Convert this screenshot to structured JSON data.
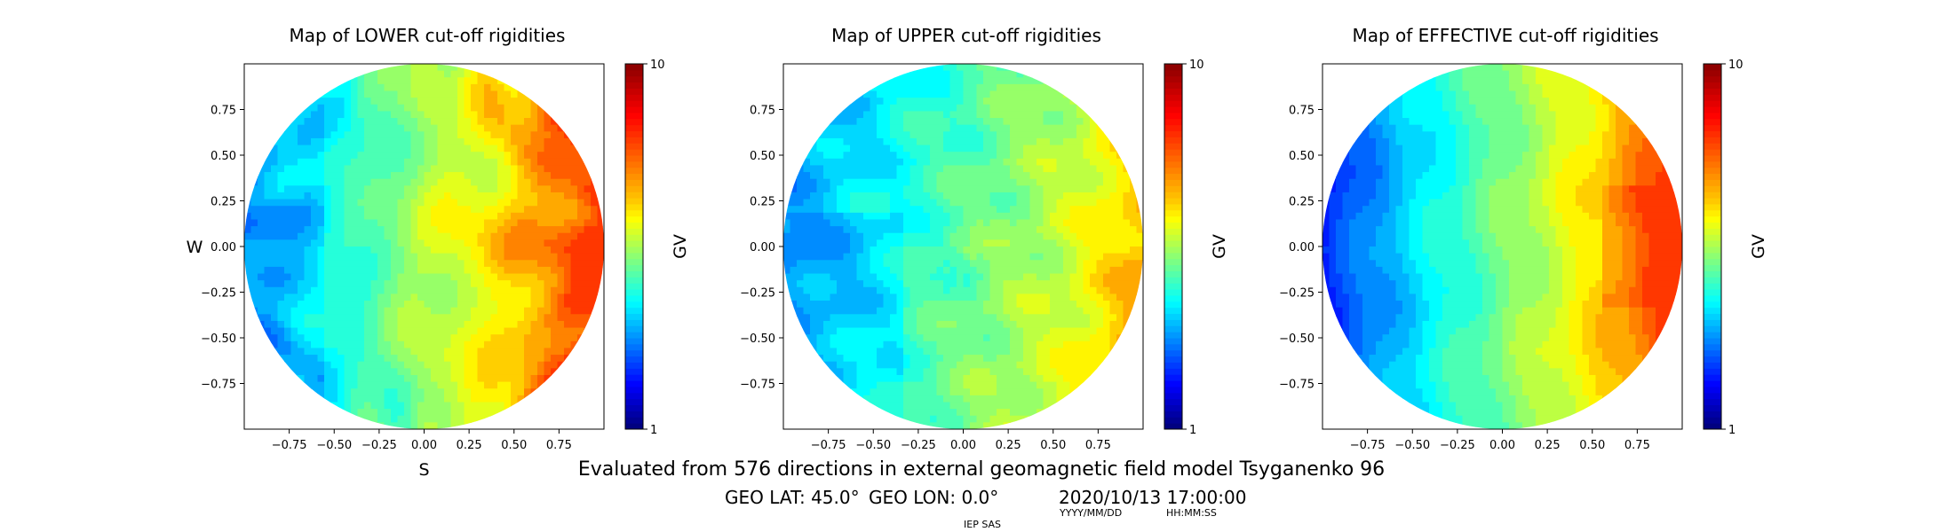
{
  "chart_data": [
    {
      "type": "heatmap",
      "title": "Map of LOWER cut-off rigidities",
      "xlabel": "S",
      "ylabel": "W",
      "colorbar_label": "GV",
      "xlim": [
        -1,
        1
      ],
      "ylim": [
        -1,
        1
      ],
      "xticks": [
        "−0.75",
        "−0.50",
        "−0.25",
        "0.00",
        "0.25",
        "0.50",
        "0.75"
      ],
      "yticks": [
        "0.75",
        "0.50",
        "0.25",
        "0.00",
        "−0.25",
        "−0.50",
        "−0.75"
      ],
      "tick_values": [
        -0.75,
        -0.5,
        -0.25,
        0,
        0.25,
        0.5,
        0.75
      ],
      "colorbar_range": [
        1,
        10
      ],
      "colorbar_ticks": [
        "1",
        "10"
      ],
      "pattern": "lower",
      "colormap": "jet"
    },
    {
      "type": "heatmap",
      "title": "Map of UPPER cut-off rigidities",
      "xlabel": "",
      "ylabel": "",
      "colorbar_label": "GV",
      "xlim": [
        -1,
        1
      ],
      "ylim": [
        -1,
        1
      ],
      "xticks": [
        "−0.75",
        "−0.50",
        "−0.25",
        "0.00",
        "0.25",
        "0.50",
        "0.75"
      ],
      "yticks": [
        "0.75",
        "0.50",
        "0.25",
        "0.00",
        "−0.25",
        "−0.50",
        "−0.75"
      ],
      "tick_values": [
        -0.75,
        -0.5,
        -0.25,
        0,
        0.25,
        0.5,
        0.75
      ],
      "colorbar_range": [
        1,
        10
      ],
      "colorbar_ticks": [
        "1",
        "10"
      ],
      "pattern": "upper",
      "colormap": "jet"
    },
    {
      "type": "heatmap",
      "title": "Map of EFFECTIVE cut-off rigidities",
      "xlabel": "",
      "ylabel": "",
      "colorbar_label": "GV",
      "xlim": [
        -1,
        1
      ],
      "ylim": [
        -1,
        1
      ],
      "xticks": [
        "−0.75",
        "−0.50",
        "−0.25",
        "0.00",
        "0.25",
        "0.50",
        "0.75"
      ],
      "yticks": [
        "0.75",
        "0.50",
        "0.25",
        "0.00",
        "−0.25",
        "−0.50",
        "−0.75"
      ],
      "tick_values": [
        -0.75,
        -0.5,
        -0.25,
        0,
        0.25,
        0.5,
        0.75
      ],
      "colorbar_range": [
        1,
        10
      ],
      "colorbar_ticks": [
        "1",
        "10"
      ],
      "pattern": "effective",
      "colormap": "jet"
    }
  ],
  "footer": {
    "description": "Evaluated from 576 directions in external geomagnetic field model Tsyganenko 96",
    "geo_lat": "GEO LAT: 45.0°",
    "geo_lon": "GEO LON: 0.0°",
    "datetime": "2020/10/13 17:00:00",
    "date_format": "YYYY/MM/DD",
    "time_format": "HH:MM:SS",
    "institution": "IEP SAS"
  }
}
